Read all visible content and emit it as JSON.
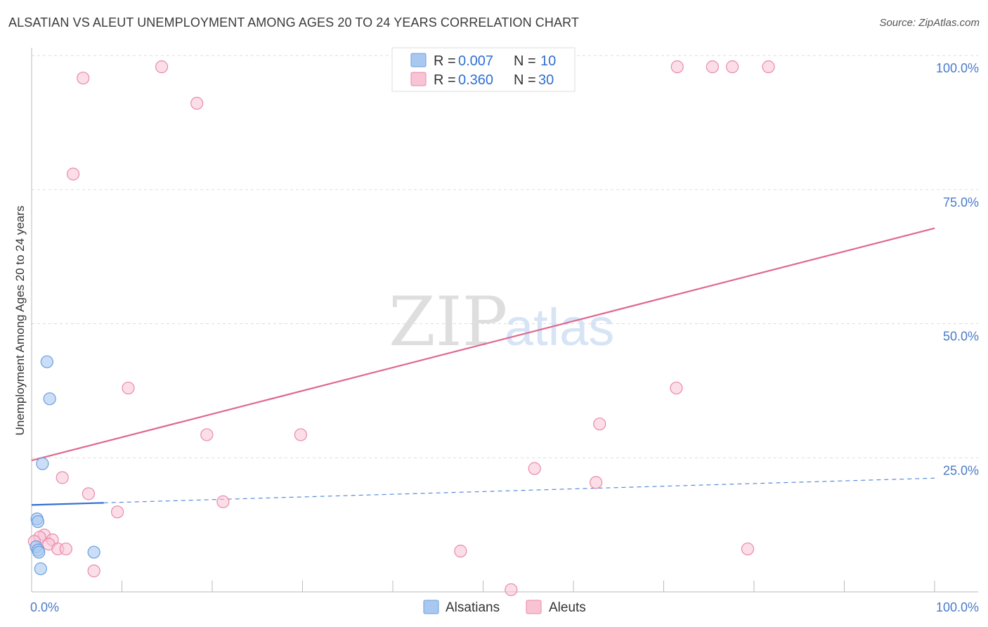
{
  "title": "ALSATIAN VS ALEUT UNEMPLOYMENT AMONG AGES 20 TO 24 YEARS CORRELATION CHART",
  "source": "Source: ZipAtlas.com",
  "watermark": {
    "zip": "ZIP",
    "atlas": "atlas"
  },
  "colors": {
    "alsatians_fill": "#a9c8f0",
    "alsatians_stroke": "#6a9ee0",
    "alsatians_line": "#2f6fd1",
    "aleuts_fill": "#f8c3d3",
    "aleuts_stroke": "#ea8aaa",
    "aleuts_line": "#e06890",
    "grid": "#dddddd",
    "axis": "#bbbbbb"
  },
  "legend": {
    "rows": [
      {
        "r_label": "R =",
        "r_value": "0.007",
        "n_label": "N =",
        "n_value": "10"
      },
      {
        "r_label": "R =",
        "r_value": "0.360",
        "n_label": "N =",
        "n_value": "30"
      }
    ]
  },
  "chart_data": {
    "type": "scatter",
    "title": "ALSATIAN VS ALEUT UNEMPLOYMENT AMONG AGES 20 TO 24 YEARS CORRELATION CHART",
    "xlabel": "",
    "ylabel": "Unemployment Among Ages 20 to 24 years",
    "xlim": [
      0,
      100
    ],
    "ylim": [
      0,
      100
    ],
    "x_tick_labels": [
      {
        "value": 0,
        "label": "0.0%"
      },
      {
        "value": 100,
        "label": "100.0%"
      }
    ],
    "y_tick_labels": [
      {
        "value": 100,
        "label": "100.0%"
      },
      {
        "value": 75,
        "label": "75.0%"
      },
      {
        "value": 50,
        "label": "50.0%"
      },
      {
        "value": 25,
        "label": "25.0%"
      }
    ],
    "y_grid": [
      100,
      75,
      50,
      25
    ],
    "x_minor_ticks": [
      10,
      20,
      30,
      40,
      50,
      60,
      70,
      80,
      90,
      100
    ],
    "series": [
      {
        "name": "Alsatians",
        "points": [
          {
            "x": 1.7,
            "y": 42.9
          },
          {
            "x": 2.0,
            "y": 36.0
          },
          {
            "x": 1.2,
            "y": 23.9
          },
          {
            "x": 0.6,
            "y": 13.6
          },
          {
            "x": 0.7,
            "y": 13.1
          },
          {
            "x": 0.5,
            "y": 8.4
          },
          {
            "x": 0.7,
            "y": 7.8
          },
          {
            "x": 0.8,
            "y": 7.4
          },
          {
            "x": 6.9,
            "y": 7.4
          },
          {
            "x": 1.0,
            "y": 4.3
          }
        ],
        "trend": {
          "x": [
            0,
            100
          ],
          "y": [
            16.2,
            21.2
          ],
          "solid_until_x": 8
        }
      },
      {
        "name": "Aleuts",
        "points": [
          {
            "x": 14.4,
            "y": 97.9
          },
          {
            "x": 5.7,
            "y": 95.8
          },
          {
            "x": 18.3,
            "y": 91.1
          },
          {
            "x": 71.5,
            "y": 97.9
          },
          {
            "x": 75.4,
            "y": 97.9
          },
          {
            "x": 77.6,
            "y": 97.9
          },
          {
            "x": 81.6,
            "y": 97.9
          },
          {
            "x": 4.6,
            "y": 77.9
          },
          {
            "x": 10.7,
            "y": 38.0
          },
          {
            "x": 71.4,
            "y": 38.0
          },
          {
            "x": 19.4,
            "y": 29.3
          },
          {
            "x": 29.8,
            "y": 29.3
          },
          {
            "x": 62.9,
            "y": 31.3
          },
          {
            "x": 55.7,
            "y": 23.0
          },
          {
            "x": 3.4,
            "y": 21.3
          },
          {
            "x": 62.5,
            "y": 20.4
          },
          {
            "x": 6.3,
            "y": 18.3
          },
          {
            "x": 21.2,
            "y": 16.8
          },
          {
            "x": 9.5,
            "y": 14.9
          },
          {
            "x": 1.4,
            "y": 10.6
          },
          {
            "x": 0.9,
            "y": 10.2
          },
          {
            "x": 2.3,
            "y": 9.7
          },
          {
            "x": 0.3,
            "y": 9.4
          },
          {
            "x": 1.9,
            "y": 8.9
          },
          {
            "x": 2.9,
            "y": 8.0
          },
          {
            "x": 3.8,
            "y": 8.0
          },
          {
            "x": 47.5,
            "y": 7.6
          },
          {
            "x": 79.3,
            "y": 8.0
          },
          {
            "x": 6.9,
            "y": 3.9
          },
          {
            "x": 53.1,
            "y": 0.4
          }
        ],
        "trend": {
          "x": [
            0,
            100
          ],
          "y": [
            24.5,
            67.8
          ]
        }
      }
    ]
  }
}
